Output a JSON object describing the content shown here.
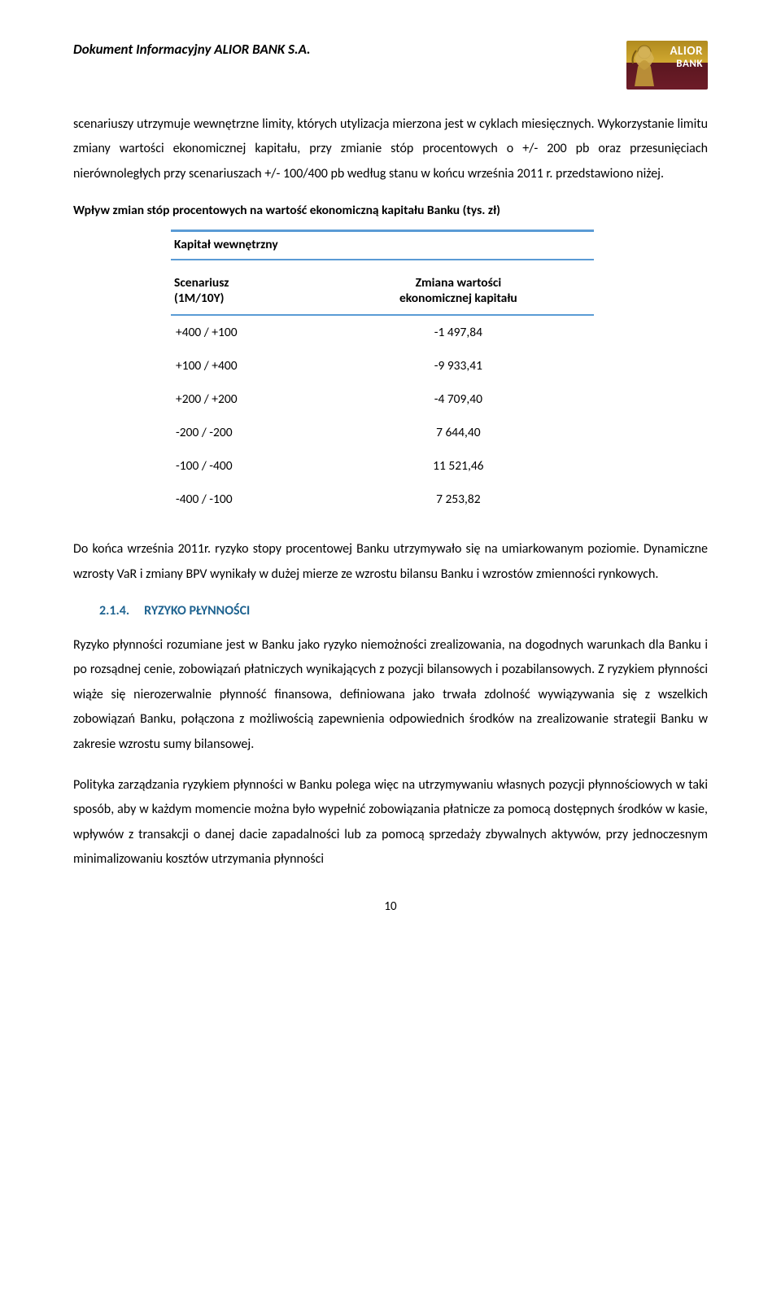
{
  "header": {
    "doc_title": "Dokument Informacyjny ALIOR BANK S.A.",
    "logo_line1": "ALIOR",
    "logo_line2": "BANK"
  },
  "para1": "scenariuszy utrzymuje wewnętrzne limity, których utylizacja mierzona jest w cyklach miesięcznych. Wykorzystanie limitu zmiany wartości ekonomicznej kapitału, przy zmianie stóp procentowych o +/- 200 pb oraz przesunięciach nierównoległych przy scenariuszach +/- 100/400 pb według stanu w końcu września 2011 r. przedstawiono niżej.",
  "table": {
    "caption": "Wpływ zmian stóp procentowych na wartość ekonomiczną kapitału Banku (tys. zł)",
    "cap_inner": "Kapitał wewnętrzny",
    "col1_a": "Scenariusz",
    "col1_b": "(1M/10Y)",
    "col2_a": "Zmiana wartości",
    "col2_b": "ekonomicznej kapitału",
    "rows": [
      {
        "s": "+400 / +100",
        "v": "-1 497,84"
      },
      {
        "s": "+100 / +400",
        "v": "-9 933,41"
      },
      {
        "s": "+200 / +200",
        "v": "-4 709,40"
      },
      {
        "s": "-200  /  -200",
        "v": "7 644,40"
      },
      {
        "s": "-100  /  -400",
        "v": "11 521,46"
      },
      {
        "s": "-400  /  -100",
        "v": "7 253,82"
      }
    ]
  },
  "para2": "Do końca września 2011r. ryzyko stopy procentowej Banku utrzymywało się na umiarkowanym poziomie. Dynamiczne wzrosty VaR i zmiany BPV wynikały w dużej mierze ze wzrostu bilansu Banku i wzrostów zmienności rynkowych.",
  "section": {
    "num": "2.1.4.",
    "title": "RYZYKO PŁYNNOŚCI"
  },
  "para3": "Ryzyko płynności rozumiane jest w Banku jako ryzyko niemożności zrealizowania, na dogodnych warunkach dla Banku i po rozsądnej cenie, zobowiązań płatniczych wynikających z pozycji bilansowych i pozabilansowych. Z ryzykiem płynności wiąże się nierozerwalnie płynność finansowa, definiowana jako trwała zdolność wywiązywania się z wszelkich zobowiązań Banku, połączona z możliwością zapewnienia odpowiednich środków na zrealizowanie strategii Banku w zakresie wzrostu sumy bilansowej.",
  "para4": "Polityka zarządzania ryzykiem płynności w Banku polega więc na utrzymywaniu własnych pozycji płynnościowych w taki sposób, aby w każdym momencie można było wypełnić zobowiązania płatnicze za pomocą dostępnych środków w kasie, wpływów z transakcji o danej dacie zapadalności lub za pomocą sprzedaży zbywalnych aktywów, przy jednoczesnym minimalizowaniu kosztów utrzymania płynności",
  "page_number": "10",
  "colors": {
    "accent_blue": "#5a9bd5",
    "heading_blue": "#1f6390"
  }
}
